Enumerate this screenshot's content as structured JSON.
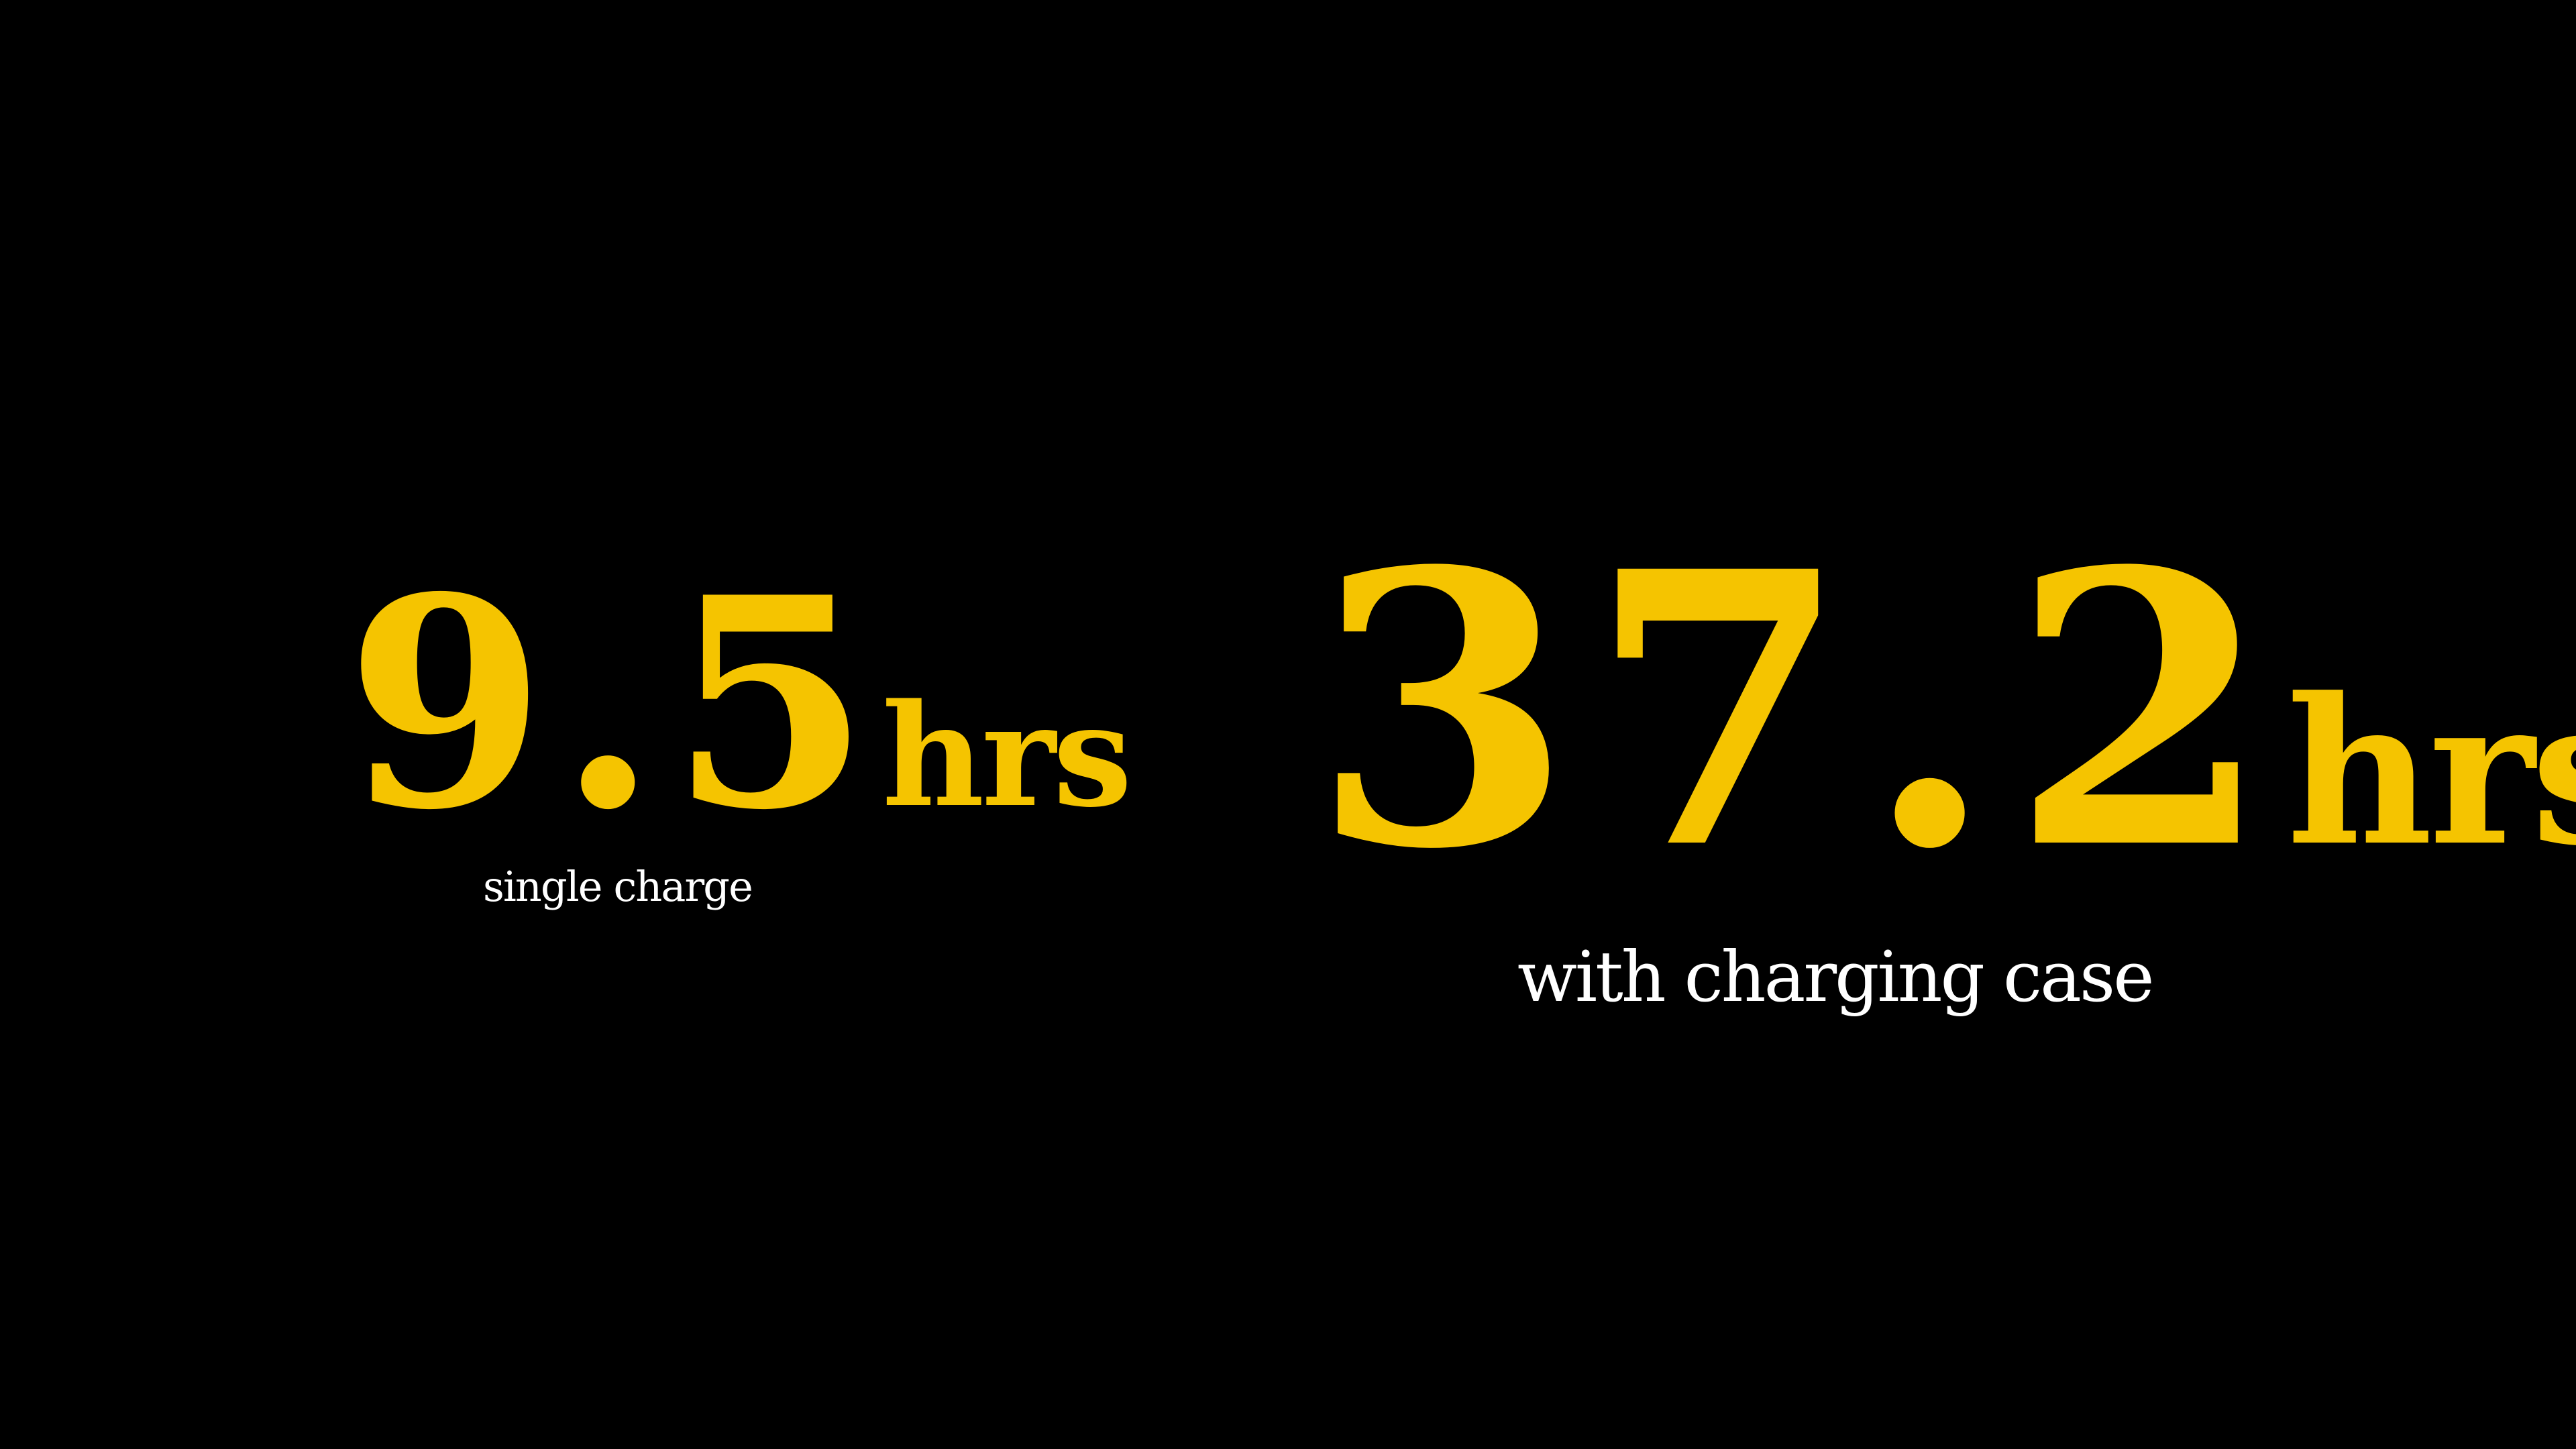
{
  "colors": {
    "background": "#000000",
    "accent": "#F5C400",
    "caption": "#FFFFFF"
  },
  "stats": {
    "single": {
      "value": "9.5",
      "unit": "hrs",
      "caption": "single charge"
    },
    "case": {
      "value": "37.2",
      "unit": "hrs",
      "caption": "with charging case"
    }
  }
}
